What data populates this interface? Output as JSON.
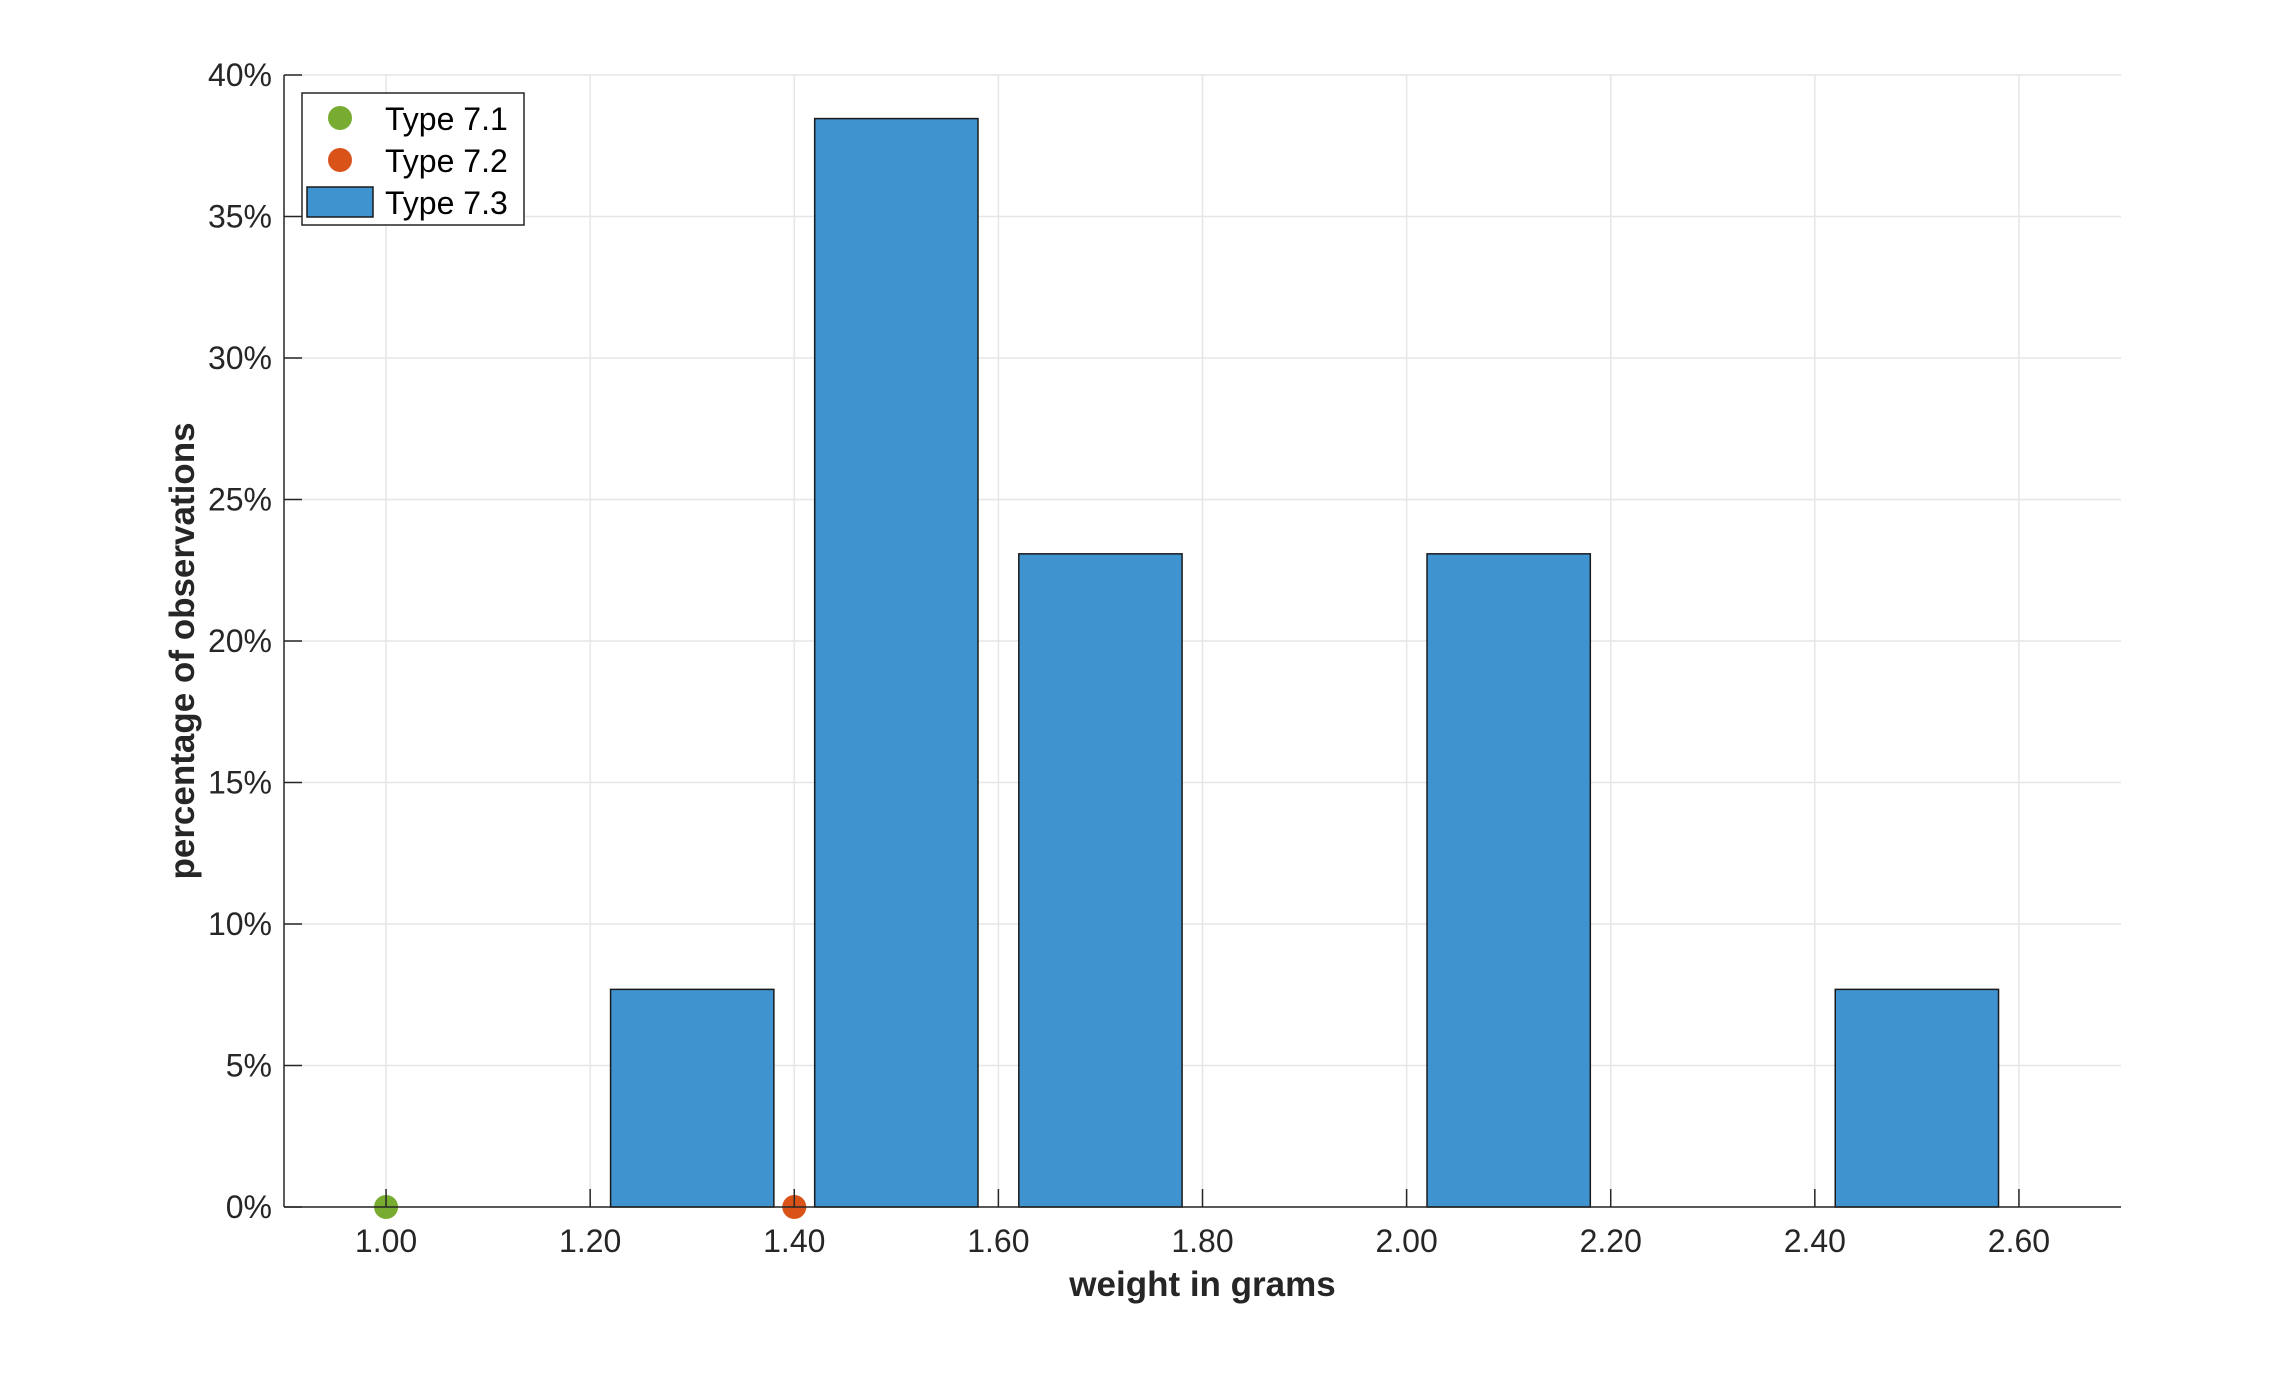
{
  "chart_data": {
    "type": "bar",
    "xlabel": "weight in grams",
    "ylabel": "percentage of observations",
    "xlim": [
      0.9,
      2.7
    ],
    "ylim": [
      0,
      40
    ],
    "x_ticks": [
      "1.00",
      "1.20",
      "1.40",
      "1.60",
      "1.80",
      "2.00",
      "2.20",
      "2.40",
      "2.60"
    ],
    "x_tick_values": [
      1.0,
      1.2,
      1.4,
      1.6,
      1.8,
      2.0,
      2.2,
      2.4,
      2.6
    ],
    "y_ticks": [
      "0%",
      "5%",
      "10%",
      "15%",
      "20%",
      "25%",
      "30%",
      "35%",
      "40%"
    ],
    "y_tick_values": [
      0,
      5,
      10,
      15,
      20,
      25,
      30,
      35,
      40
    ],
    "grid": true,
    "legend_position": "top-left",
    "series": [
      {
        "name": "Type 7.1",
        "type": "scatter",
        "color": "#77ac30",
        "points": [
          {
            "x": 1.0,
            "y": 0
          }
        ]
      },
      {
        "name": "Type 7.2",
        "type": "scatter",
        "color": "#d95319",
        "points": [
          {
            "x": 1.4,
            "y": 0
          }
        ]
      },
      {
        "name": "Type 7.3",
        "type": "bar",
        "color": "#3f93cf",
        "bins": [
          {
            "x_start": 1.22,
            "x_end": 1.38,
            "value": 7.69
          },
          {
            "x_start": 1.42,
            "x_end": 1.58,
            "value": 38.46
          },
          {
            "x_start": 1.62,
            "x_end": 1.78,
            "value": 23.08
          },
          {
            "x_start": 2.02,
            "x_end": 2.18,
            "value": 23.08
          },
          {
            "x_start": 2.42,
            "x_end": 2.58,
            "value": 7.69
          }
        ]
      }
    ]
  }
}
